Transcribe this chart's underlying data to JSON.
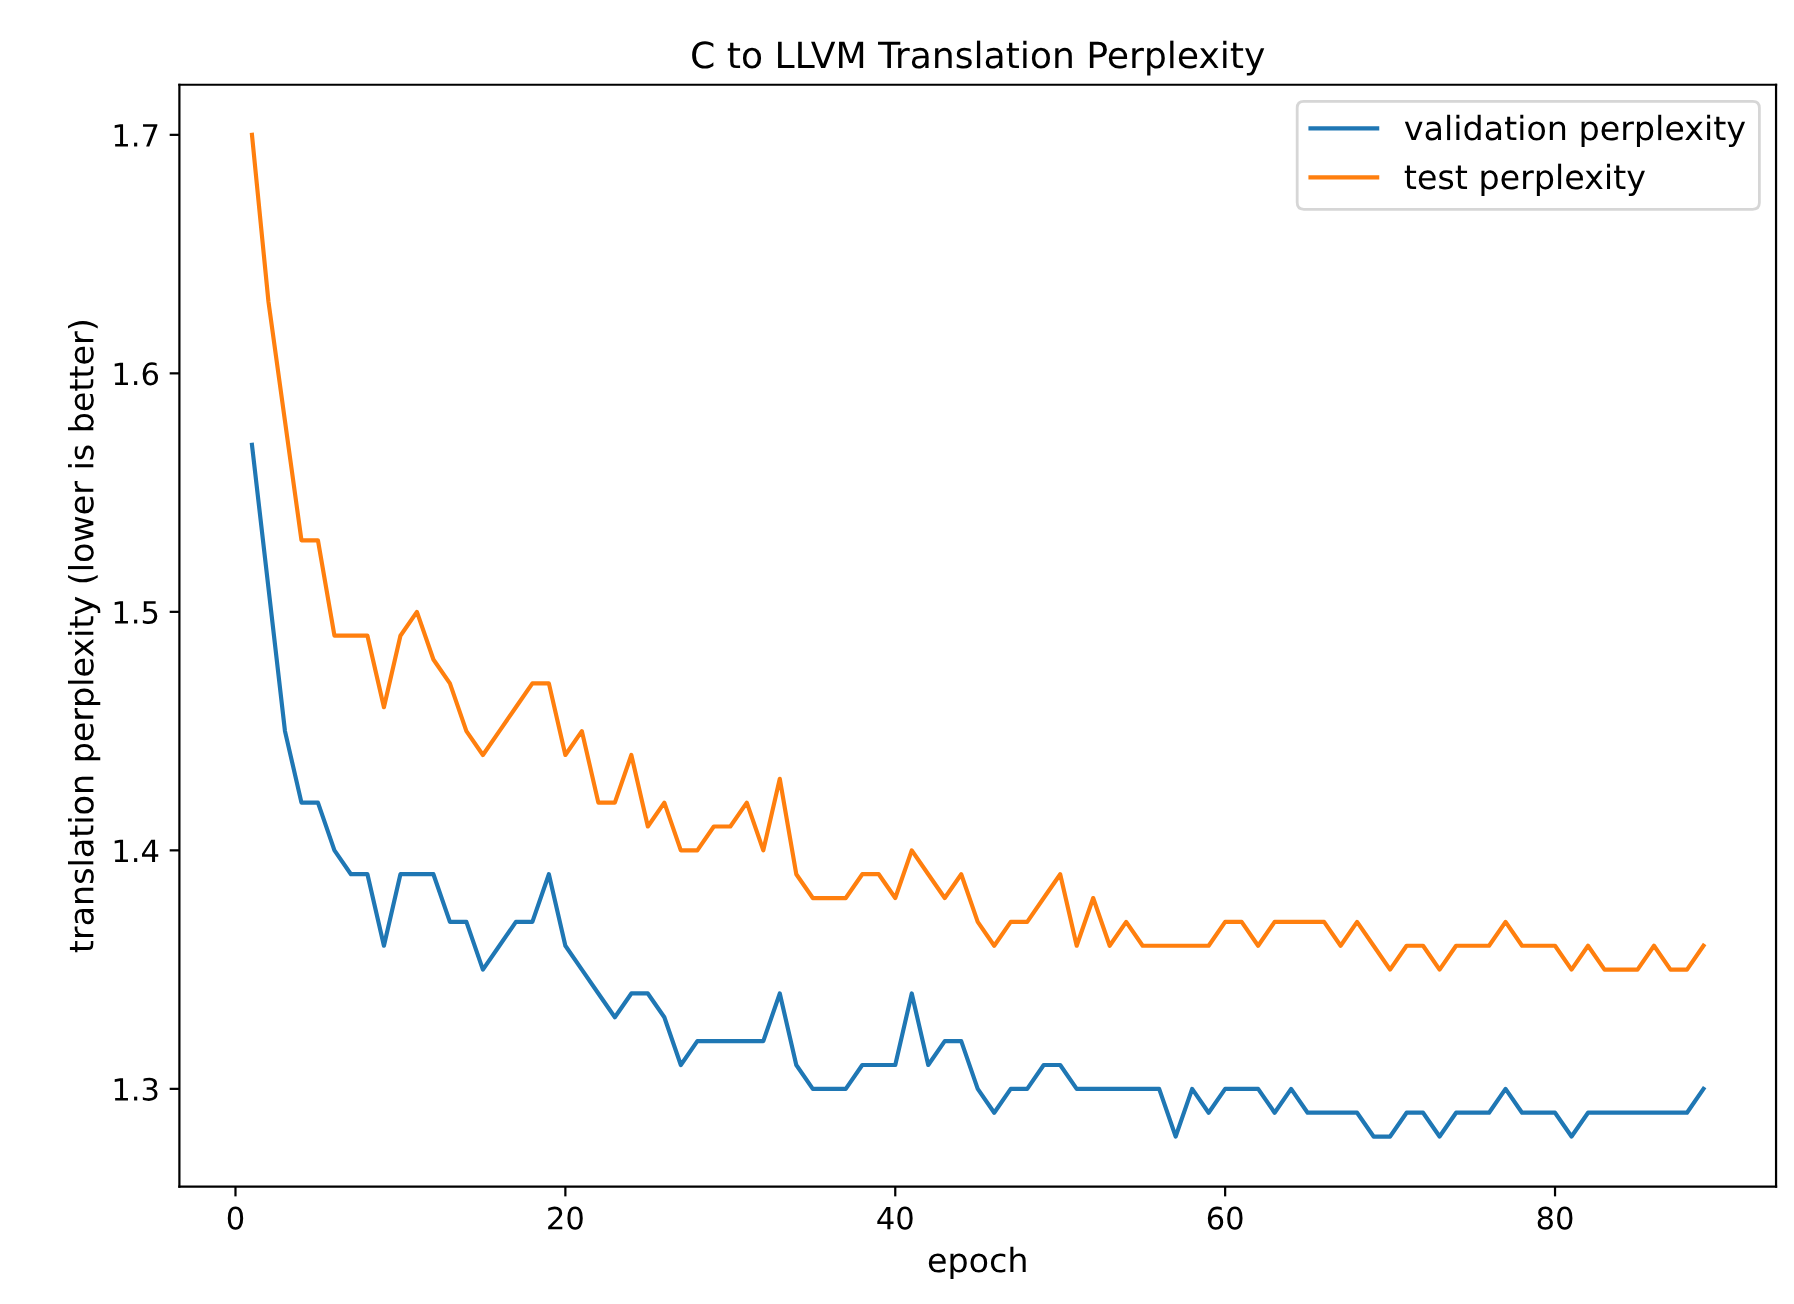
{
  "chart_data": {
    "type": "line",
    "title": "C to LLVM Translation Perplexity",
    "xlabel": "epoch",
    "ylabel": "translation perplexity (lower is better)",
    "x": [
      1,
      2,
      3,
      4,
      5,
      6,
      7,
      8,
      9,
      10,
      11,
      12,
      13,
      14,
      15,
      16,
      17,
      18,
      19,
      20,
      21,
      22,
      23,
      24,
      25,
      26,
      27,
      28,
      29,
      30,
      31,
      32,
      33,
      34,
      35,
      36,
      37,
      38,
      39,
      40,
      41,
      42,
      43,
      44,
      45,
      46,
      47,
      48,
      49,
      50,
      51,
      52,
      53,
      54,
      55,
      56,
      57,
      58,
      59,
      60,
      61,
      62,
      63,
      64,
      65,
      66,
      67,
      68,
      69,
      70,
      71,
      72,
      73,
      74,
      75,
      76,
      77,
      78,
      79,
      80,
      81,
      82,
      83,
      84,
      85,
      86,
      87,
      88,
      89
    ],
    "series": [
      {
        "name": "validation perplexity",
        "color": "#1f77b4",
        "values": [
          1.57,
          1.51,
          1.45,
          1.42,
          1.42,
          1.4,
          1.39,
          1.39,
          1.36,
          1.39,
          1.39,
          1.39,
          1.37,
          1.37,
          1.35,
          1.36,
          1.37,
          1.37,
          1.39,
          1.36,
          1.35,
          1.34,
          1.33,
          1.34,
          1.34,
          1.33,
          1.31,
          1.32,
          1.32,
          1.32,
          1.32,
          1.32,
          1.34,
          1.31,
          1.3,
          1.3,
          1.3,
          1.31,
          1.31,
          1.31,
          1.34,
          1.31,
          1.32,
          1.32,
          1.3,
          1.29,
          1.3,
          1.3,
          1.31,
          1.31,
          1.3,
          1.3,
          1.3,
          1.3,
          1.3,
          1.3,
          1.28,
          1.3,
          1.29,
          1.3,
          1.3,
          1.3,
          1.29,
          1.3,
          1.29,
          1.29,
          1.29,
          1.29,
          1.28,
          1.28,
          1.29,
          1.29,
          1.28,
          1.29,
          1.29,
          1.29,
          1.3,
          1.29,
          1.29,
          1.29,
          1.28,
          1.29,
          1.29,
          1.29,
          1.29,
          1.29,
          1.29,
          1.29,
          1.3
        ]
      },
      {
        "name": "test perplexity",
        "color": "#ff7f0e",
        "values": [
          1.7,
          1.63,
          1.58,
          1.53,
          1.53,
          1.49,
          1.49,
          1.49,
          1.46,
          1.49,
          1.5,
          1.48,
          1.47,
          1.45,
          1.44,
          1.45,
          1.46,
          1.47,
          1.47,
          1.44,
          1.45,
          1.42,
          1.42,
          1.44,
          1.41,
          1.42,
          1.4,
          1.4,
          1.41,
          1.41,
          1.42,
          1.4,
          1.43,
          1.39,
          1.38,
          1.38,
          1.38,
          1.39,
          1.39,
          1.38,
          1.4,
          1.39,
          1.38,
          1.39,
          1.37,
          1.36,
          1.37,
          1.37,
          1.38,
          1.39,
          1.36,
          1.38,
          1.36,
          1.37,
          1.36,
          1.36,
          1.36,
          1.36,
          1.36,
          1.37,
          1.37,
          1.36,
          1.37,
          1.37,
          1.37,
          1.37,
          1.36,
          1.37,
          1.36,
          1.35,
          1.36,
          1.36,
          1.35,
          1.36,
          1.36,
          1.36,
          1.37,
          1.36,
          1.36,
          1.36,
          1.35,
          1.36,
          1.35,
          1.35,
          1.35,
          1.36,
          1.35,
          1.35,
          1.36
        ]
      }
    ],
    "xlim": [
      -3.4,
      93.4
    ],
    "ylim": [
      1.259,
      1.721
    ],
    "xticks": [
      0,
      20,
      40,
      60,
      80
    ],
    "yticks": [
      1.3,
      1.4,
      1.5,
      1.6,
      1.7
    ],
    "legend": "top right",
    "grid": false,
    "marker": "none",
    "line_style": "solid"
  }
}
